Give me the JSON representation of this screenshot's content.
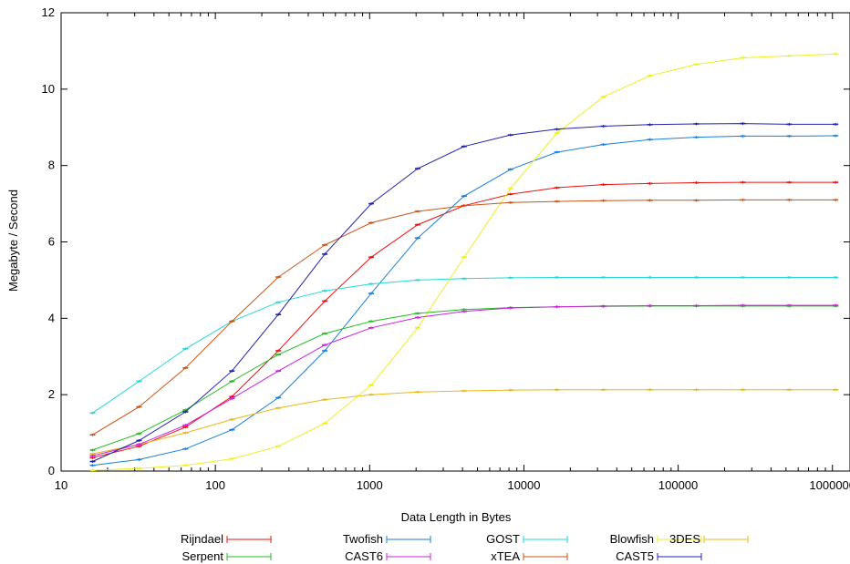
{
  "chart_data": {
    "type": "line",
    "title": "",
    "xlabel": "Data Length in Bytes",
    "ylabel": "Megabyte / Second",
    "xscale": "log",
    "xlim": [
      10,
      1300000
    ],
    "ylim": [
      0,
      12
    ],
    "x_ticks": [
      "10",
      "100",
      "1000",
      "10000",
      "100000",
      "1000000"
    ],
    "y_ticks": [
      "0",
      "2",
      "4",
      "6",
      "8",
      "10",
      "12"
    ],
    "x": [
      16,
      32,
      64,
      128,
      256,
      512,
      1024,
      2048,
      4096,
      8192,
      16384,
      32768,
      65536,
      131072,
      262144,
      524288,
      1048576
    ],
    "legend_position": "bottom",
    "grid": false,
    "error_bars": true,
    "series": [
      {
        "name": "Rijndael",
        "color": "#ee1111",
        "values": [
          0.35,
          0.65,
          1.15,
          1.95,
          3.15,
          4.45,
          5.6,
          6.45,
          6.95,
          7.25,
          7.42,
          7.5,
          7.53,
          7.55,
          7.56,
          7.56,
          7.56
        ]
      },
      {
        "name": "Twofish",
        "color": "#1a7fd8",
        "values": [
          0.15,
          0.3,
          0.58,
          1.08,
          1.92,
          3.15,
          4.65,
          6.1,
          7.2,
          7.9,
          8.35,
          8.55,
          8.68,
          8.74,
          8.77,
          8.77,
          8.78
        ]
      },
      {
        "name": "GOST",
        "color": "#22d8d8",
        "values": [
          1.52,
          2.35,
          3.2,
          3.92,
          4.42,
          4.72,
          4.9,
          5.0,
          5.04,
          5.06,
          5.07,
          5.07,
          5.07,
          5.07,
          5.07,
          5.07,
          5.07
        ]
      },
      {
        "name": "Blowfish",
        "color": "#eeee22",
        "values": [
          0.02,
          0.07,
          0.15,
          0.32,
          0.65,
          1.25,
          2.25,
          3.75,
          5.6,
          7.4,
          8.85,
          9.8,
          10.35,
          10.65,
          10.82,
          10.87,
          10.92
        ]
      },
      {
        "name": "3DES",
        "color": "#e8b818",
        "values": [
          0.45,
          0.7,
          1.0,
          1.35,
          1.65,
          1.87,
          2.0,
          2.07,
          2.1,
          2.12,
          2.13,
          2.13,
          2.13,
          2.13,
          2.13,
          2.13,
          2.13
        ]
      },
      {
        "name": "Serpent",
        "color": "#22bb22",
        "values": [
          0.55,
          0.98,
          1.6,
          2.35,
          3.05,
          3.6,
          3.92,
          4.13,
          4.23,
          4.28,
          4.3,
          4.31,
          4.32,
          4.32,
          4.32,
          4.32,
          4.32
        ]
      },
      {
        "name": "CAST6",
        "color": "#cc22dd",
        "values": [
          0.4,
          0.7,
          1.2,
          1.9,
          2.62,
          3.3,
          3.75,
          4.02,
          4.18,
          4.27,
          4.3,
          4.32,
          4.33,
          4.33,
          4.34,
          4.34,
          4.34
        ]
      },
      {
        "name": "xTEA",
        "color": "#c85518",
        "values": [
          0.95,
          1.68,
          2.7,
          3.92,
          5.08,
          5.92,
          6.5,
          6.8,
          6.95,
          7.03,
          7.06,
          7.08,
          7.09,
          7.09,
          7.1,
          7.1,
          7.1
        ]
      },
      {
        "name": "CAST5",
        "color": "#2222aa",
        "values": [
          0.25,
          0.8,
          1.55,
          2.62,
          4.1,
          5.68,
          7.0,
          7.92,
          8.5,
          8.8,
          8.95,
          9.03,
          9.07,
          9.09,
          9.1,
          9.08,
          9.08
        ]
      }
    ]
  }
}
